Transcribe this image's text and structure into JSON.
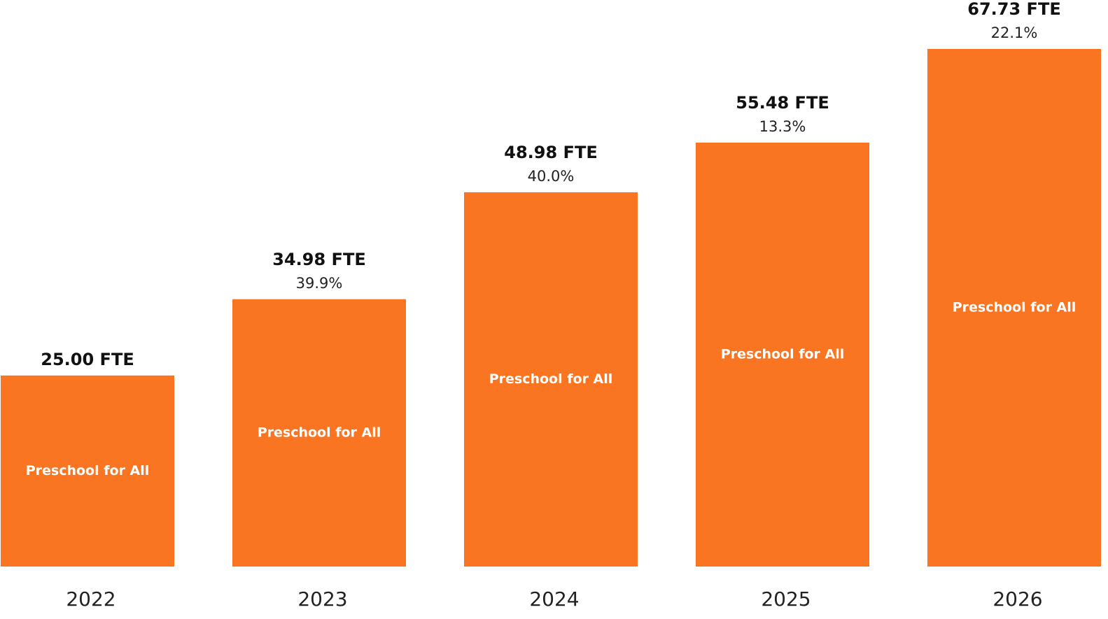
{
  "chart_data": {
    "type": "bar",
    "categories": [
      "2022",
      "2023",
      "2024",
      "2025",
      "2026"
    ],
    "series": [
      {
        "name": "Preschool for All",
        "color": "#f97522",
        "values": [
          25,
          34.98,
          48.98,
          55.48,
          67.73
        ],
        "value_labels": [
          "25.00 FTE",
          "34.98 FTE",
          "48.98 FTE",
          "55.48 FTE",
          "67.73 FTE"
        ]
      }
    ],
    "growth_labels": [
      null,
      "39.9%",
      "40.0%",
      "13.3%",
      "22.1%"
    ]
  }
}
